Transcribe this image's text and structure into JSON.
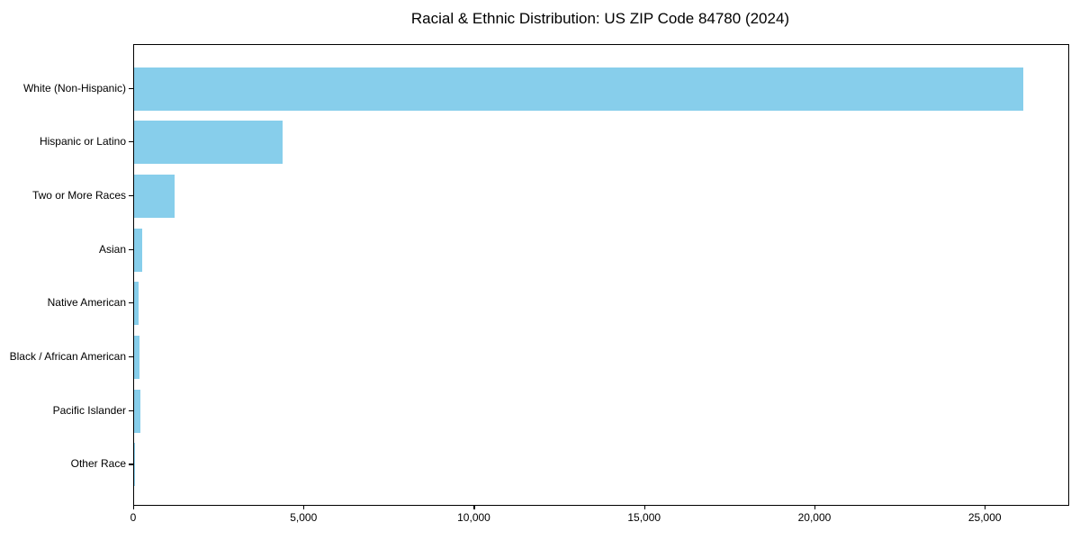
{
  "title": "Racial & Ethnic Distribution: US ZIP Code 84780 (2024)",
  "colors": {
    "bar": "#87CEEB",
    "axis": "#000000",
    "text": "#000000",
    "background": "#FFFFFF"
  },
  "chart_data": {
    "type": "bar",
    "orientation": "horizontal",
    "title": "Racial & Ethnic Distribution: US ZIP Code 84780 (2024)",
    "categories": [
      "White (Non-Hispanic)",
      "Hispanic or Latino",
      "Two or More Races",
      "Asian",
      "Native American",
      "Black / African American",
      "Pacific Islander",
      "Other Race"
    ],
    "values": [
      26100,
      4360,
      1190,
      250,
      145,
      160,
      180,
      10
    ],
    "bar_color": "#87CEEB",
    "xlabel": "",
    "ylabel": "",
    "xlim": [
      0,
      27425
    ],
    "xticks": {
      "values": [
        0,
        5000,
        10000,
        15000,
        20000,
        25000
      ],
      "labels": [
        "0",
        "5,000",
        "10,000",
        "15,000",
        "20,000",
        "25,000"
      ]
    },
    "grid": false,
    "legend": null,
    "frame": "full-box"
  }
}
